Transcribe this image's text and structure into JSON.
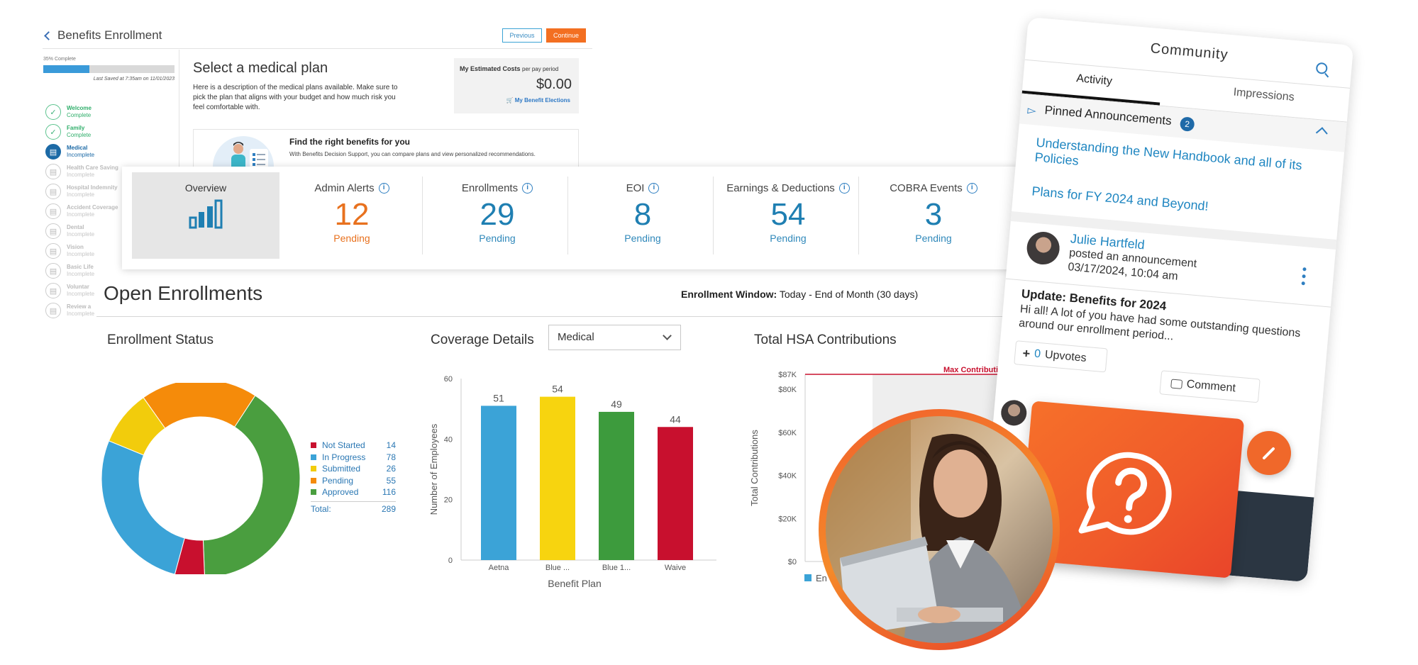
{
  "benefits": {
    "back_label": "Benefits Enrollment",
    "previous_label": "Previous",
    "continue_label": "Continue",
    "progress_label": "35% Complete",
    "progress_fraction": 0.35,
    "last_saved": "Last Saved at 7:35am on 11/01/2023",
    "steps": [
      {
        "title": "Welcome",
        "status": "Complete"
      },
      {
        "title": "Family",
        "status": "Complete"
      },
      {
        "title": "Medical",
        "status": "Incomplete"
      },
      {
        "title": "Health Care Saving",
        "status": "Incomplete"
      },
      {
        "title": "Hospital Indemnity",
        "status": "Incomplete"
      },
      {
        "title": "Accident Coverage",
        "status": "Incomplete"
      },
      {
        "title": "Dental",
        "status": "Incomplete"
      },
      {
        "title": "Vision",
        "status": "Incomplete"
      },
      {
        "title": "Basic Life",
        "status": "Incomplete"
      },
      {
        "title": "Voluntar",
        "status": "Incomplete"
      },
      {
        "title": "Review a",
        "status": "Incomplete"
      }
    ],
    "plan_title": "Select a medical plan",
    "plan_desc": "Here is a description of the medical plans available. Make sure to pick the plan that aligns with your budget and how much risk you feel comfortable with.",
    "cost_label": "My Estimated Costs",
    "cost_period": "per pay period",
    "cost_value": "$0.00",
    "cost_link": "My Benefit Elections",
    "find_title": "Find the right benefits for you",
    "find_desc": "With Benefits Decision Support, you can compare plans and view personalized recommendations."
  },
  "stats": {
    "overview_label": "Overview",
    "items": [
      {
        "label": "Admin Alerts",
        "value": "12",
        "sub": "Pending"
      },
      {
        "label": "Enrollments",
        "value": "29",
        "sub": "Pending"
      },
      {
        "label": "EOI",
        "value": "8",
        "sub": "Pending"
      },
      {
        "label": "Earnings & Deductions",
        "value": "54",
        "sub": "Pending"
      },
      {
        "label": "COBRA Events",
        "value": "3",
        "sub": "Pending"
      }
    ]
  },
  "open_enrollments": {
    "title": "Open Enrollments",
    "window_label": "Enrollment Window:",
    "window_value": "Today - End of Month (30 days)",
    "status_title": "Enrollment Status",
    "coverage_title": "Coverage Details",
    "coverage_select": "Medical",
    "hsa_title": "Total HSA Contributions"
  },
  "chart_data": [
    {
      "type": "pie",
      "title": "Enrollment Status",
      "categories": [
        "Not Started",
        "In Progress",
        "Submitted",
        "Pending",
        "Approved"
      ],
      "values": [
        14,
        78,
        26,
        55,
        116
      ],
      "colors": [
        "#c8102e",
        "#3ba3d7",
        "#f2cc0c",
        "#f58b0a",
        "#4a9e3f"
      ],
      "total_label": "Total:",
      "total": 289,
      "legend": "right"
    },
    {
      "type": "bar",
      "categories": [
        "Aetna",
        "Blue ...",
        "Blue 1...",
        "Waive"
      ],
      "values": [
        51,
        54,
        49,
        44
      ],
      "colors": [
        "#3ba3d7",
        "#f7d40f",
        "#3d9b3d",
        "#c8102e"
      ],
      "xlabel": "Benefit Plan",
      "ylabel": "Number of Employees",
      "ylim": [
        0,
        60
      ],
      "yticks": [
        0,
        20,
        40,
        60
      ]
    },
    {
      "type": "bar",
      "title": "Total HSA Contributions",
      "ylabel": "Total Contributions",
      "yticks": [
        "$0",
        "$20K",
        "$40K",
        "$60K",
        "$80K",
        "$87K"
      ],
      "annotation": "Max Contribution",
      "annotation_value": 87000,
      "legend_partial": "En"
    }
  ],
  "community": {
    "title": "Community",
    "tab_activity": "Activity",
    "tab_impressions": "Impressions",
    "pinned_label": "Pinned Announcements",
    "pinned_count": "2",
    "announcement_1": "Understanding the New Handbook and all of its Policies",
    "announcement_2": "Plans for FY 2024 and Beyond!",
    "post_author": "Julie Hartfeld",
    "post_action": "posted an announcement",
    "post_time": "03/17/2024, 10:04 am",
    "post_headline": "Update: Benefits for 2024",
    "post_body": "Hi all! A lot of you have had some outstanding questions around our enrollment period...",
    "upvote_count": "0",
    "upvote_label": "Upvotes",
    "comment_label": "Comment"
  },
  "colors": {
    "accent_orange": "#f36f21",
    "accent_blue": "#1f7fb2"
  }
}
